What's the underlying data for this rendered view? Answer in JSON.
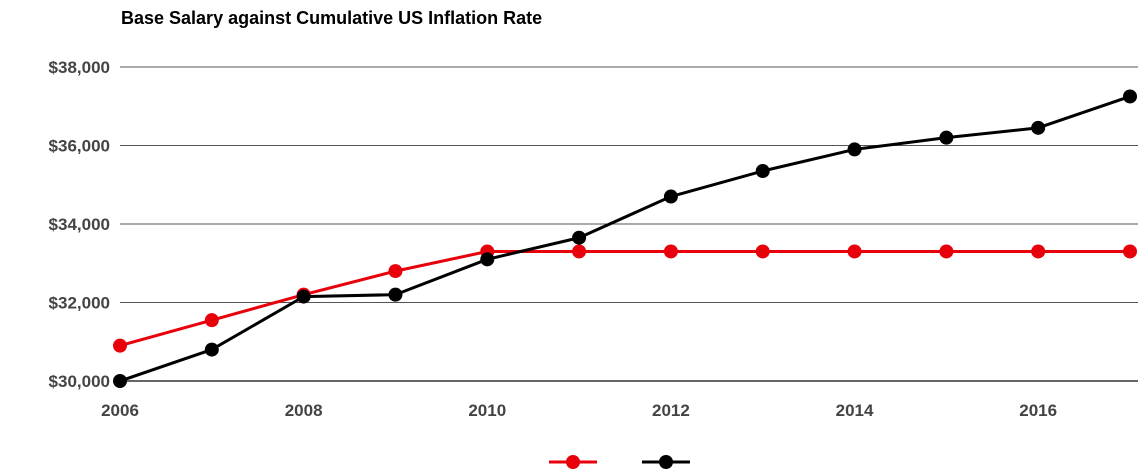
{
  "chart_data": {
    "type": "line",
    "title": "Base Salary against Cumulative US Inflation Rate",
    "xlabel": "",
    "ylabel": "",
    "x": [
      2006,
      2007,
      2008,
      2009,
      2010,
      2011,
      2012,
      2013,
      2014,
      2015,
      2016,
      2017
    ],
    "xlim": [
      2006,
      2017
    ],
    "ylim": [
      30000,
      38000
    ],
    "grid": true,
    "legend_position": "bottom",
    "x_ticks": [
      "2006",
      "2008",
      "2010",
      "2012",
      "2014",
      "2016"
    ],
    "y_ticks": [
      "$30,000",
      "$32,000",
      "$34,000",
      "$36,000",
      "$38,000"
    ],
    "series": [
      {
        "color": "#e8000b",
        "values": [
          30900,
          31550,
          32200,
          32800,
          33300,
          33300,
          33300,
          33300,
          33300,
          33300,
          33300,
          33300
        ]
      },
      {
        "color": "#000000",
        "values": [
          30000,
          30800,
          32150,
          32200,
          33100,
          33650,
          34700,
          35350,
          35900,
          36200,
          36450,
          37250
        ]
      }
    ]
  }
}
